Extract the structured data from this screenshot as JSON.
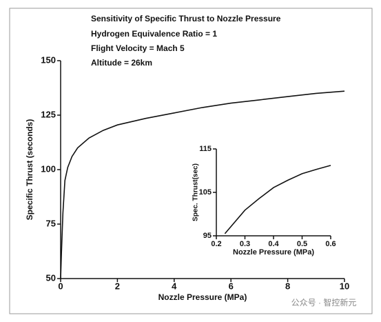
{
  "chart_data": [
    {
      "type": "line",
      "title": "Sensitivity of Specific Thrust to Nozzle Pressure",
      "annotations": [
        "Hydrogen Equivalence Ratio = 1",
        "Flight Velocity = Mach 5",
        "Altitude = 26km"
      ],
      "xlabel": "Nozzle Pressure  (MPa)",
      "ylabel": "Specific Thrust (seconds)",
      "x": [
        0.0,
        0.03,
        0.08,
        0.15,
        0.25,
        0.4,
        0.6,
        1,
        1.5,
        2,
        3,
        4,
        5,
        6,
        7,
        8,
        9,
        10
      ],
      "values": [
        50,
        62,
        80,
        95,
        101,
        106,
        110,
        114.5,
        118,
        120.5,
        123.5,
        126,
        128.5,
        130.5,
        132,
        133.5,
        135,
        136
      ],
      "color": "#111111",
      "xlim": [
        0,
        10
      ],
      "ylim": [
        50,
        150
      ],
      "xticks": [
        0,
        2,
        4,
        6,
        8,
        10
      ],
      "yticks": [
        50,
        75,
        100,
        125,
        150
      ],
      "grid": false
    },
    {
      "type": "line",
      "xlabel": "Nozzle Pressure (MPa)",
      "ylabel": "Spec. Thrust(sec)",
      "x": [
        0.23,
        0.3,
        0.35,
        0.4,
        0.45,
        0.5,
        0.55,
        0.6
      ],
      "values": [
        95.5,
        100.9,
        103.6,
        106.1,
        107.8,
        109.3,
        110.3,
        111.2
      ],
      "color": "#111111",
      "xlim": [
        0.2,
        0.6
      ],
      "ylim": [
        95,
        115
      ],
      "xticks": [
        0.2,
        0.3,
        0.4,
        0.5,
        0.6
      ],
      "yticks": [
        95,
        105,
        115
      ],
      "grid": false
    }
  ],
  "watermark": "公众号 · 智控新元"
}
